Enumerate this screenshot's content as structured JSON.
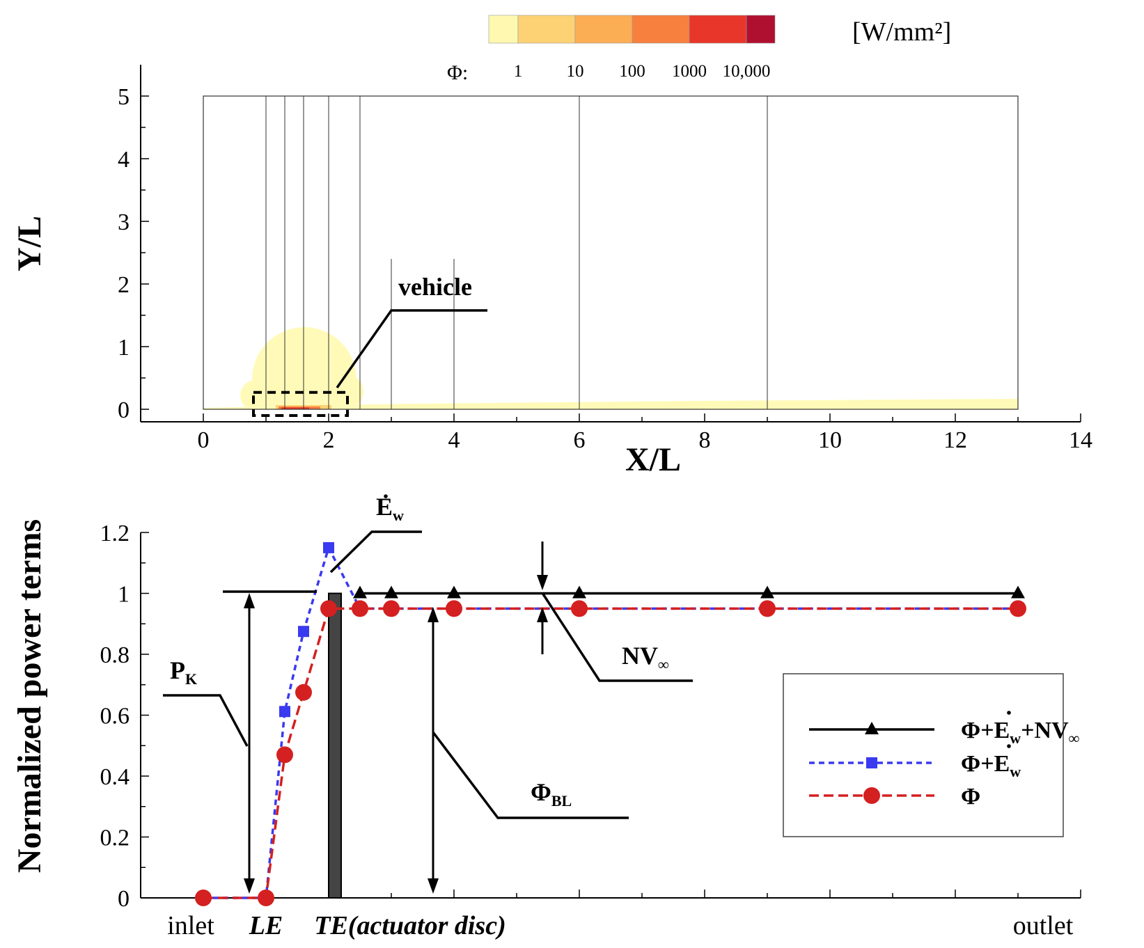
{
  "colorbar": {
    "unit": "[W/mm²]",
    "symbol": "Φ:",
    "ticks": [
      "1",
      "10",
      "100",
      "1000",
      "10,000"
    ],
    "colors": [
      "#fff8b0",
      "#fdd274",
      "#fcae55",
      "#f8803e",
      "#e8362a",
      "#b01030"
    ]
  },
  "chart_data": [
    {
      "type": "contour",
      "xlabel": "X/L",
      "ylabel": "Y/L",
      "xlim": [
        -1,
        14
      ],
      "ylim": [
        -0.2,
        5.5
      ],
      "x_ticks": [
        "0",
        "2",
        "4",
        "6",
        "8",
        "10",
        "12",
        "14"
      ],
      "x_tick_values": [
        0,
        2,
        4,
        6,
        8,
        10,
        12,
        14
      ],
      "y_ticks": [
        "0",
        "1",
        "2",
        "3",
        "4",
        "5"
      ],
      "y_tick_values": [
        0,
        1,
        2,
        3,
        4,
        5
      ],
      "domain": {
        "x": [
          0,
          13
        ],
        "y": [
          0,
          5
        ]
      },
      "plane_x": [
        1,
        1.3,
        1.6,
        2,
        2.5,
        3,
        4,
        6,
        9
      ],
      "annotation": "vehicle",
      "vehicle_box": {
        "x": [
          0.8,
          2.3
        ],
        "y": [
          -0.1,
          0.27
        ]
      }
    },
    {
      "type": "line",
      "ylabel": "Normalized power terms",
      "xlim": [
        -1,
        14
      ],
      "ylim": [
        0,
        1.2
      ],
      "y_ticks": [
        "0",
        "0.2",
        "0.4",
        "0.6",
        "0.8",
        "1",
        "1.2"
      ],
      "y_tick_values": [
        0,
        0.2,
        0.4,
        0.6,
        0.8,
        1.0,
        1.2
      ],
      "x_category_labels": [
        {
          "text": "inlet",
          "x": -0.2,
          "italic": false
        },
        {
          "text": "LE",
          "x": 1.0,
          "italic": true
        },
        {
          "text": "TE(actuator disc)",
          "x": 3.3,
          "italic": true
        },
        {
          "text": "outlet",
          "x": 13.4,
          "italic": false
        }
      ],
      "series": [
        {
          "name": "Φ+Ėw+NV∞",
          "legend": {
            "base": "Φ+E",
            "sub": "w",
            "mid": "+NV",
            "sub2": "∞"
          },
          "color": "#000000",
          "dash": "",
          "marker": "triangle",
          "x": [
            2.5,
            3,
            4,
            6,
            9,
            13
          ],
          "y": [
            1.0,
            1.0,
            1.0,
            1.0,
            1.0,
            1.0
          ]
        },
        {
          "name": "Φ+Ėw",
          "legend": {
            "base": "Φ+E",
            "sub": "w",
            "mid": "",
            "sub2": ""
          },
          "color": "#3a3af0",
          "dash": "8,6",
          "marker": "square",
          "x": [
            0,
            1,
            1.3,
            1.6,
            2,
            2.5,
            3,
            4,
            6,
            9,
            13
          ],
          "y": [
            0,
            0,
            0.612,
            0.875,
            1.15,
            0.95,
            0.95,
            0.95,
            0.95,
            0.95,
            0.95
          ]
        },
        {
          "name": "Φ",
          "legend": {
            "base": "Φ",
            "sub": "",
            "mid": "",
            "sub2": ""
          },
          "color": "#d42020",
          "dash": "14,7",
          "marker": "circle",
          "x": [
            0,
            1,
            1.3,
            1.6,
            2,
            2.5,
            3,
            4,
            6,
            9,
            13
          ],
          "y": [
            0,
            0,
            0.47,
            0.675,
            0.95,
            0.95,
            0.95,
            0.95,
            0.95,
            0.95,
            0.95
          ]
        }
      ],
      "annotations": {
        "ew": {
          "base": "E",
          "sub": "w"
        },
        "pk": {
          "base": "P",
          "sub": "K"
        },
        "nv": {
          "base": "NV",
          "sub": "∞"
        },
        "phibl": {
          "base": "Φ",
          "sub": "BL"
        }
      },
      "actuator_disc_x": 2.1
    }
  ]
}
